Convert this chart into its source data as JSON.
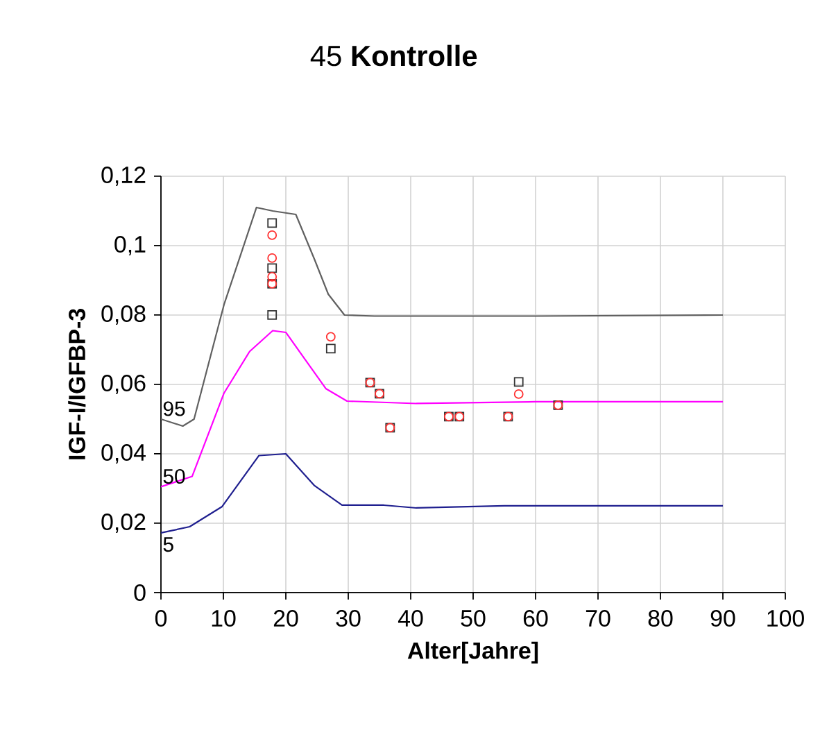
{
  "chart_data": {
    "type": "line",
    "title": "45 **Kontrolle**",
    "xlabel": "Alter[Jahre]",
    "ylabel": "IGF-I/IGFBP-3",
    "xlim": [
      0,
      100
    ],
    "ylim": [
      0,
      0.12
    ],
    "xticks": [
      0,
      10,
      20,
      30,
      40,
      50,
      60,
      70,
      80,
      90,
      100
    ],
    "yticks": [
      {
        "value": 0,
        "label": "0"
      },
      {
        "value": 0.02,
        "label": "0,02"
      },
      {
        "value": 0.04,
        "label": "0,04"
      },
      {
        "value": 0.06,
        "label": "0,06"
      },
      {
        "value": 0.08,
        "label": "0,08"
      },
      {
        "value": 0.1,
        "label": "0,1"
      },
      {
        "value": 0.12,
        "label": "0,12"
      }
    ],
    "grid": true,
    "series": [
      {
        "color": "#606060",
        "marker": "none",
        "x": [
          0,
          3.5,
          5.3,
          10.1,
          15.3,
          17.9,
          21.6,
          24.6,
          26.8,
          29.4,
          34.2,
          60,
          90
        ],
        "values": [
          0.05,
          0.048,
          0.05,
          0.083,
          0.111,
          0.11,
          0.109,
          0.096,
          0.086,
          0.08,
          0.0797,
          0.0797,
          0.08
        ]
      },
      {
        "color": "#ff00ff",
        "marker": "none",
        "x": [
          0,
          5,
          10.1,
          14.2,
          17.9,
          20,
          26.4,
          29.8,
          40.9,
          60,
          90
        ],
        "values": [
          0.0305,
          0.0335,
          0.0575,
          0.0695,
          0.0755,
          0.075,
          0.0588,
          0.0552,
          0.0545,
          0.055,
          0.055
        ]
      },
      {
        "color": "#1f1f8f",
        "marker": "none",
        "x": [
          0,
          4.6,
          9.8,
          15.7,
          20,
          24.6,
          29,
          35.7,
          40.9,
          55,
          90
        ],
        "values": [
          0.0172,
          0.019,
          0.0248,
          0.0395,
          0.04,
          0.0308,
          0.0252,
          0.0252,
          0.0244,
          0.025,
          0.025
        ]
      },
      {
        "type": "scatter",
        "color": "#333333",
        "marker": "square",
        "x": [
          17.8,
          17.8,
          17.8,
          17.8,
          27.2,
          33.5,
          35,
          36.7,
          46.1,
          47.8,
          55.6,
          57.3,
          63.6
        ],
        "values": [
          0.1065,
          0.0935,
          0.089,
          0.08,
          0.0703,
          0.0605,
          0.0573,
          0.0475,
          0.0507,
          0.0507,
          0.0507,
          0.0607,
          0.054
        ]
      },
      {
        "type": "scatter",
        "color": "#ff3030",
        "marker": "circle",
        "x": [
          17.8,
          17.8,
          17.8,
          17.8,
          27.2,
          33.5,
          35,
          36.7,
          46.1,
          47.8,
          55.6,
          57.3,
          63.6
        ],
        "values": [
          0.103,
          0.0964,
          0.091,
          0.089,
          0.0737,
          0.0605,
          0.0573,
          0.0475,
          0.0507,
          0.0507,
          0.0507,
          0.0572,
          0.054
        ]
      }
    ],
    "annotations": [
      "95",
      "50",
      "5"
    ]
  }
}
